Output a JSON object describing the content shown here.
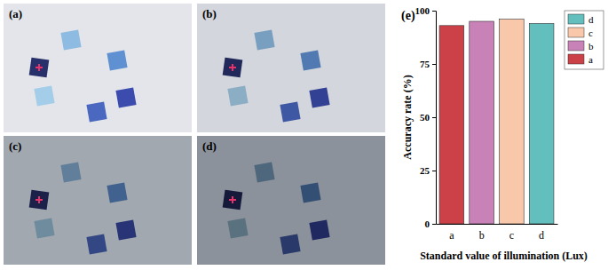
{
  "photos": {
    "labels": [
      "(a)",
      "(b)",
      "(c)",
      "(d)"
    ]
  },
  "chart_data": {
    "type": "bar",
    "title": "(e)",
    "x_label": "Standard value of illumination (Lux)",
    "y_label": "Accuracy rate (%)",
    "categories": [
      "a",
      "b",
      "c",
      "d"
    ],
    "values": [
      93,
      95,
      96,
      94
    ],
    "colors": [
      "#cc4148",
      "#c882b8",
      "#f9c8ab",
      "#63bfbe"
    ],
    "ylim": [
      0,
      100
    ],
    "yticks": [
      0,
      25,
      50,
      75,
      100
    ],
    "grid": false,
    "legend": "upper right"
  }
}
